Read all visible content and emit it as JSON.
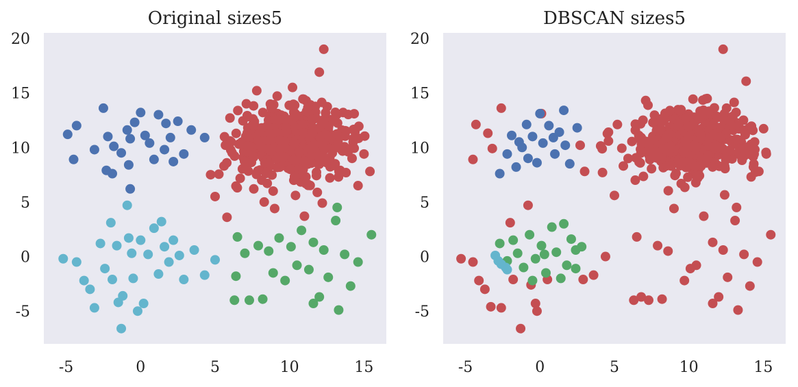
{
  "colors": {
    "axes_background": "#e9e9f1",
    "red": "#c44e52",
    "blue": "#4c72b0",
    "green": "#55a868",
    "cyan": "#64b5cd"
  },
  "chart_data": [
    {
      "type": "scatter",
      "title": "Original sizes5",
      "xlabel": "",
      "ylabel": "",
      "xlim": [
        -6.5,
        16.5
      ],
      "ylim": [
        -8,
        20.5
      ],
      "xticks": [
        "-5",
        "0",
        "5",
        "10",
        "15"
      ],
      "yticks": [
        "-5",
        "0",
        "5",
        "10",
        "15",
        "20"
      ],
      "grid": false,
      "series": [
        {
          "color": "blue",
          "points": [
            [
              -4.9,
              11.2
            ],
            [
              -4.3,
              12.0
            ],
            [
              -4.5,
              8.9
            ],
            [
              -3.1,
              9.8
            ],
            [
              -2.5,
              13.6
            ],
            [
              -2.2,
              11.0
            ],
            [
              -1.8,
              10.1
            ],
            [
              -1.3,
              9.5
            ],
            [
              -0.9,
              11.6
            ],
            [
              -0.7,
              10.8
            ],
            [
              -0.4,
              12.3
            ],
            [
              0.3,
              11.1
            ],
            [
              0.6,
              10.4
            ],
            [
              1.2,
              13.0
            ],
            [
              1.7,
              12.2
            ],
            [
              2.0,
              10.9
            ],
            [
              2.5,
              12.4
            ],
            [
              2.9,
              9.4
            ],
            [
              3.4,
              11.6
            ],
            [
              -0.8,
              8.4
            ],
            [
              -1.9,
              7.6
            ],
            [
              0.9,
              8.9
            ],
            [
              -0.7,
              6.2
            ],
            [
              2.2,
              8.7
            ],
            [
              4.3,
              10.9
            ],
            [
              -2.3,
              7.9
            ],
            [
              0.0,
              13.2
            ],
            [
              1.6,
              9.8
            ]
          ]
        },
        {
          "color": "cyan",
          "points": [
            [
              -5.2,
              -0.2
            ],
            [
              -4.3,
              -0.5
            ],
            [
              -3.8,
              -2.2
            ],
            [
              -3.4,
              -3.0
            ],
            [
              -3.1,
              -4.7
            ],
            [
              -2.7,
              1.2
            ],
            [
              -2.4,
              -1.1
            ],
            [
              -1.9,
              -2.1
            ],
            [
              -1.6,
              1.0
            ],
            [
              -1.2,
              -3.6
            ],
            [
              -0.8,
              1.7
            ],
            [
              -0.6,
              0.3
            ],
            [
              -0.5,
              -2.0
            ],
            [
              0.0,
              1.5
            ],
            [
              0.2,
              -4.3
            ],
            [
              0.5,
              0.2
            ],
            [
              0.9,
              2.6
            ],
            [
              1.2,
              -1.6
            ],
            [
              1.4,
              3.2
            ],
            [
              1.6,
              0.9
            ],
            [
              1.9,
              -0.5
            ],
            [
              2.2,
              1.5
            ],
            [
              2.6,
              0.1
            ],
            [
              2.9,
              -2.1
            ],
            [
              3.6,
              0.6
            ],
            [
              4.3,
              -1.7
            ],
            [
              -0.2,
              -5.0
            ],
            [
              -1.3,
              -6.6
            ],
            [
              -0.9,
              4.7
            ],
            [
              5.0,
              -0.3
            ],
            [
              -1.5,
              -4.2
            ],
            [
              -2.0,
              3.1
            ]
          ]
        },
        {
          "color": "green",
          "points": [
            [
              6.4,
              -1.8
            ],
            [
              6.5,
              1.8
            ],
            [
              7.0,
              0.3
            ],
            [
              7.3,
              -4.0
            ],
            [
              7.9,
              1.0
            ],
            [
              8.2,
              -3.9
            ],
            [
              8.6,
              0.5
            ],
            [
              8.9,
              -1.5
            ],
            [
              9.3,
              1.7
            ],
            [
              9.7,
              -2.2
            ],
            [
              10.1,
              0.9
            ],
            [
              10.5,
              -0.8
            ],
            [
              10.8,
              2.4
            ],
            [
              11.3,
              -1.2
            ],
            [
              11.6,
              1.3
            ],
            [
              12.0,
              -3.7
            ],
            [
              12.3,
              0.6
            ],
            [
              12.6,
              -1.9
            ],
            [
              13.1,
              3.3
            ],
            [
              13.3,
              -4.9
            ],
            [
              13.7,
              0.2
            ],
            [
              14.1,
              -2.7
            ],
            [
              14.6,
              -0.5
            ],
            [
              15.5,
              2.0
            ],
            [
              13.2,
              4.5
            ],
            [
              6.3,
              -4.0
            ],
            [
              11.6,
              -4.3
            ]
          ]
        },
        {
          "color": "red",
          "points": [
            [
              4.7,
              7.5
            ],
            [
              5.0,
              5.5
            ],
            [
              5.6,
              8.3
            ],
            [
              6.0,
              12.7
            ],
            [
              6.6,
              10.3
            ],
            [
              7.1,
              14.0
            ],
            [
              7.6,
              6.2
            ],
            [
              7.8,
              15.2
            ],
            [
              8.2,
              11.2
            ],
            [
              8.5,
              9.3
            ],
            [
              8.9,
              6.0
            ],
            [
              9.2,
              13.1
            ],
            [
              9.5,
              10.5
            ],
            [
              9.9,
              8.1
            ],
            [
              10.2,
              15.5
            ],
            [
              10.5,
              11.8
            ],
            [
              10.8,
              9.6
            ],
            [
              11.1,
              7.3
            ],
            [
              11.4,
              13.9
            ],
            [
              11.7,
              10.7
            ],
            [
              12.0,
              16.9
            ],
            [
              12.3,
              19.0
            ],
            [
              12.5,
              8.6
            ],
            [
              12.8,
              12.4
            ],
            [
              13.1,
              10.0
            ],
            [
              13.4,
              7.9
            ],
            [
              13.8,
              11.5
            ],
            [
              14.2,
              9.0
            ],
            [
              14.6,
              6.5
            ],
            [
              15.0,
              9.4
            ],
            [
              15.4,
              7.8
            ],
            [
              9.0,
              4.4
            ],
            [
              11.0,
              3.7
            ],
            [
              8.3,
              5.0
            ],
            [
              10.4,
              5.6
            ],
            [
              12.2,
              4.9
            ],
            [
              5.8,
              3.6
            ],
            [
              13.6,
              13.2
            ],
            [
              7.2,
              11.8
            ],
            [
              9.6,
              12.3
            ],
            [
              10.9,
              12.9
            ],
            [
              11.9,
              9.1
            ],
            [
              8.7,
              8.3
            ],
            [
              9.3,
              9.9
            ],
            [
              10.1,
              10.9
            ],
            [
              10.7,
              8.8
            ],
            [
              11.3,
              11.4
            ],
            [
              12.6,
              10.3
            ]
          ]
        }
      ],
      "dense_blob": {
        "color": "red",
        "center": [
          10.2,
          10.6
        ],
        "spread": [
          1.9,
          1.5
        ],
        "count": 520
      }
    },
    {
      "type": "scatter",
      "title": "DBSCAN sizes5",
      "xlabel": "",
      "ylabel": "",
      "xlim": [
        -6.5,
        16.5
      ],
      "ylim": [
        -8,
        20.5
      ],
      "xticks": [
        "-5",
        "0",
        "5",
        "10",
        "15"
      ],
      "yticks": [
        "-5",
        "0",
        "5",
        "10",
        "15",
        "20"
      ],
      "grid": false,
      "series": [
        {
          "color": "blue",
          "points": [
            [
              -2.7,
              7.6
            ],
            [
              -2.2,
              9.4
            ],
            [
              -1.9,
              11.1
            ],
            [
              -1.6,
              8.2
            ],
            [
              -1.2,
              10.0
            ],
            [
              -0.8,
              9.0
            ],
            [
              -0.5,
              11.0
            ],
            [
              -0.2,
              8.6
            ],
            [
              0.2,
              10.4
            ],
            [
              0.6,
              12.0
            ],
            [
              1.0,
              9.4
            ],
            [
              1.3,
              11.4
            ],
            [
              1.7,
              10.2
            ],
            [
              2.0,
              8.5
            ],
            [
              2.5,
              11.8
            ],
            [
              0.0,
              13.1
            ],
            [
              1.6,
              13.4
            ],
            [
              -1.4,
              10.5
            ],
            [
              -0.9,
              12.1
            ],
            [
              0.9,
              10.9
            ]
          ]
        },
        {
          "color": "green",
          "points": [
            [
              -2.7,
              1.2
            ],
            [
              -2.2,
              -0.4
            ],
            [
              -1.8,
              1.5
            ],
            [
              -1.5,
              0.3
            ],
            [
              -1.1,
              -1.0
            ],
            [
              -0.7,
              2.0
            ],
            [
              -0.3,
              -0.2
            ],
            [
              0.1,
              1.0
            ],
            [
              0.4,
              -1.5
            ],
            [
              0.8,
              2.7
            ],
            [
              1.1,
              0.4
            ],
            [
              1.4,
              -2.0
            ],
            [
              1.8,
              -0.8
            ],
            [
              2.1,
              1.6
            ],
            [
              2.4,
              -1.1
            ],
            [
              2.8,
              0.9
            ],
            [
              1.6,
              3.0
            ],
            [
              -0.5,
              -2.2
            ],
            [
              0.3,
              0.2
            ],
            [
              2.4,
              0.6
            ]
          ]
        },
        {
          "color": "cyan",
          "points": [
            [
              -3.0,
              0.1
            ],
            [
              -2.8,
              -0.4
            ],
            [
              -2.3,
              -1.0
            ],
            [
              -2.6,
              -0.7
            ],
            [
              -2.2,
              -1.2
            ]
          ]
        },
        {
          "color": "red",
          "points": [
            [
              -5.3,
              -0.2
            ],
            [
              -4.5,
              -0.5
            ],
            [
              -4.1,
              -2.2
            ],
            [
              -3.7,
              -3.0
            ],
            [
              -3.3,
              -4.6
            ],
            [
              -2.6,
              -4.7
            ],
            [
              -1.8,
              -2.1
            ],
            [
              -1.3,
              -6.6
            ],
            [
              -0.6,
              -2.6
            ],
            [
              -0.3,
              -4.3
            ],
            [
              -0.2,
              -5.0
            ],
            [
              -0.8,
              4.7
            ],
            [
              -2.0,
              3.1
            ],
            [
              0.5,
              -2.1
            ],
            [
              2.9,
              -2.1
            ],
            [
              3.6,
              -1.7
            ],
            [
              4.4,
              0.0
            ],
            [
              5.0,
              5.6
            ],
            [
              6.3,
              -4.0
            ],
            [
              6.5,
              1.8
            ],
            [
              7.3,
              -4.0
            ],
            [
              7.9,
              1.0
            ],
            [
              8.2,
              -3.9
            ],
            [
              8.6,
              0.5
            ],
            [
              9.7,
              -2.2
            ],
            [
              10.5,
              -0.8
            ],
            [
              11.6,
              1.3
            ],
            [
              12.0,
              -3.7
            ],
            [
              12.6,
              -1.9
            ],
            [
              13.1,
              3.3
            ],
            [
              13.3,
              -4.9
            ],
            [
              13.7,
              0.2
            ],
            [
              14.1,
              -2.7
            ],
            [
              14.6,
              -0.5
            ],
            [
              15.5,
              2.0
            ],
            [
              13.2,
              4.5
            ],
            [
              11.6,
              -4.3
            ],
            [
              9.0,
              4.4
            ],
            [
              11.0,
              3.7
            ],
            [
              6.8,
              -3.7
            ],
            [
              10.1,
              -1.1
            ],
            [
              12.3,
              0.6
            ],
            [
              14.7,
              7.8
            ],
            [
              15.2,
              9.4
            ],
            [
              5.6,
              8.3
            ],
            [
              6.4,
              7.0
            ],
            [
              5.2,
              12.1
            ],
            [
              4.6,
              11.4
            ],
            [
              -3.5,
              11.3
            ],
            [
              -4.3,
              12.1
            ],
            [
              -4.5,
              8.9
            ],
            [
              -3.2,
              9.9
            ],
            [
              -2.6,
              13.6
            ],
            [
              0.1,
              13.1
            ],
            [
              2.7,
              10.2
            ],
            [
              3.0,
              7.8
            ],
            [
              4.2,
              7.7
            ],
            [
              7.1,
              14.3
            ],
            [
              12.3,
              19.0
            ]
          ]
        }
      ],
      "dense_blob": {
        "color": "red",
        "center": [
          10.2,
          10.6
        ],
        "spread": [
          1.9,
          1.5
        ],
        "count": 520
      }
    }
  ]
}
